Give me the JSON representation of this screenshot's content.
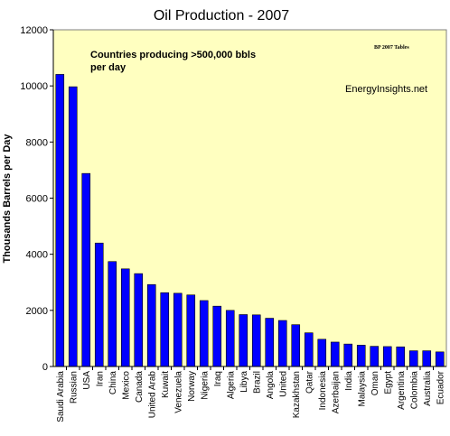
{
  "chart_data": {
    "type": "bar",
    "title": "Oil Production - 2007",
    "ylabel": "Thousands Barrels per Day",
    "xlabel": "",
    "ylim": [
      0,
      12000
    ],
    "yticks": [
      "0",
      "2000",
      "4000",
      "6000",
      "8000",
      "10000",
      "12000"
    ],
    "grid": false,
    "legend": "none",
    "categories": [
      "Saudi Arabia",
      "Russian",
      "USA",
      "Iran",
      "China",
      "Mexico",
      "Canada",
      "United Arab",
      "Kuwait",
      "Venezuela",
      "Norway",
      "Nigeria",
      "Iraq",
      "Algeria",
      "Libya",
      "Brazil",
      "Angola",
      "United",
      "Kazakhstan",
      "Qatar",
      "Indonesia",
      "Azerbaijan",
      "India",
      "Malaysia",
      "Oman",
      "Egypt",
      "Argentina",
      "Colombia",
      "Australia",
      "Ecuador"
    ],
    "values": [
      10410,
      9970,
      6880,
      4400,
      3740,
      3480,
      3310,
      2920,
      2630,
      2610,
      2550,
      2350,
      2150,
      2000,
      1850,
      1840,
      1720,
      1640,
      1490,
      1200,
      970,
      870,
      800,
      760,
      720,
      710,
      700,
      560,
      560,
      520
    ],
    "annotations": {
      "subtitle_line1": "Countries producing >500,000 bbls",
      "subtitle_line2": "per day",
      "source": "BP 2007 Tables",
      "site": "EnergyInsights.net"
    },
    "colors": {
      "plot_background": "#ffffc0",
      "bar": "#0000ff",
      "bar_edge": "#000000"
    }
  }
}
